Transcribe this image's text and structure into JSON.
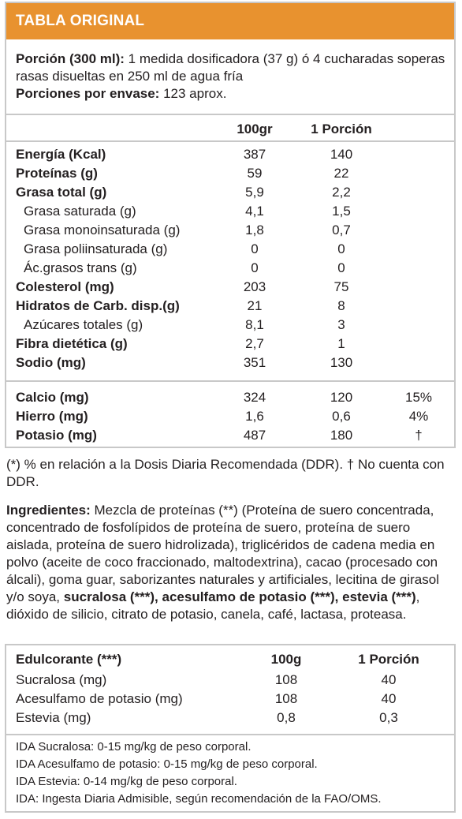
{
  "title": "TABLA ORIGINAL",
  "portion": {
    "label": "Porción (300 ml):",
    "text": "1 medida dosificadora (37 g) ó 4 cucharadas soperas rasas disueltas en 250 ml de agua fría",
    "servings_label": "Porciones por envase:",
    "servings_value": "123 aprox."
  },
  "columns": {
    "per100": "100gr",
    "perPortion": "1 Porción"
  },
  "nutrients": [
    {
      "label": "Energía (Kcal)",
      "v100": "387",
      "vp": "140"
    },
    {
      "label": "Proteínas (g)",
      "v100": "59",
      "vp": "22"
    },
    {
      "label": "Grasa total (g)",
      "v100": "5,9",
      "vp": "2,2"
    },
    {
      "label": "Grasa saturada (g)",
      "v100": "4,1",
      "vp": "1,5"
    },
    {
      "label": "Grasa monoinsaturada (g)",
      "v100": "1,8",
      "vp": "0,7"
    },
    {
      "label": "Grasa poliinsaturada (g)",
      "v100": "0",
      "vp": "0"
    },
    {
      "label": "Ác.grasos trans (g)",
      "v100": "0",
      "vp": "0"
    },
    {
      "label": "Colesterol (mg)",
      "v100": "203",
      "vp": "75"
    },
    {
      "label": "Hidratos de Carb. disp.(g)",
      "v100": "21",
      "vp": "8"
    },
    {
      "label": "Azúcares totales (g)",
      "v100": "8,1",
      "vp": "3"
    },
    {
      "label": "Fibra dietética (g)",
      "v100": "2,7",
      "vp": "1"
    },
    {
      "label": "Sodio (mg)",
      "v100": "351",
      "vp": "130"
    }
  ],
  "minerals": [
    {
      "label": "Calcio (mg)",
      "v100": "324",
      "vp": "120",
      "ddr": "15%"
    },
    {
      "label": "Hierro (mg)",
      "v100": "1,6",
      "vp": "0,6",
      "ddr": "4%"
    },
    {
      "label": "Potasio (mg)",
      "v100": "487",
      "vp": "180",
      "ddr": "†"
    }
  ],
  "ddr_note": "(*) % en relación a la Dosis Diaria Recomendada (DDR). † No cuenta con DDR.",
  "ingredients": {
    "label": "Ingredientes:",
    "text1": "Mezcla de proteínas (**) (Proteína de suero concentrada, concentrado de fosfolípidos de proteína de suero, proteína de suero aislada, proteína de suero hidrolizada), triglicéridos de cadena media en polvo (aceite de coco fraccionado, maltodextrina), cacao (procesado con álcali), goma guar, saborizantes naturales y artificiales, lecitina de girasol y/o soya,",
    "bold": "sucralosa (***), acesulfamo de potasio (***), estevia (***)",
    "text2": ", dióxido de silicio, citrato de potasio, canela, café, lactasa, proteasa."
  },
  "sweeteners": {
    "header": {
      "label": "Edulcorante (***)",
      "c1": "100g",
      "c2": "1 Porción"
    },
    "rows": [
      {
        "label": "Sucralosa (mg)",
        "c1": "108",
        "c2": "40"
      },
      {
        "label": "Acesulfamo de potasio (mg)",
        "c1": "108",
        "c2": "40"
      },
      {
        "label": "Estevia (mg)",
        "c1": "0,8",
        "c2": "0,3"
      }
    ],
    "ida": [
      "IDA Sucralosa: 0-15 mg/kg de peso corporal.",
      "IDA Acesulfamo de potasio: 0-15 mg/kg de peso corporal.",
      "IDA Estevia: 0-14 mg/kg de peso corporal.",
      "IDA: Ingesta Diaria Admisible, según recomendación de la FAO/OMS."
    ]
  },
  "colors": {
    "header": "#e8922f",
    "border": "#c8c8c8"
  }
}
